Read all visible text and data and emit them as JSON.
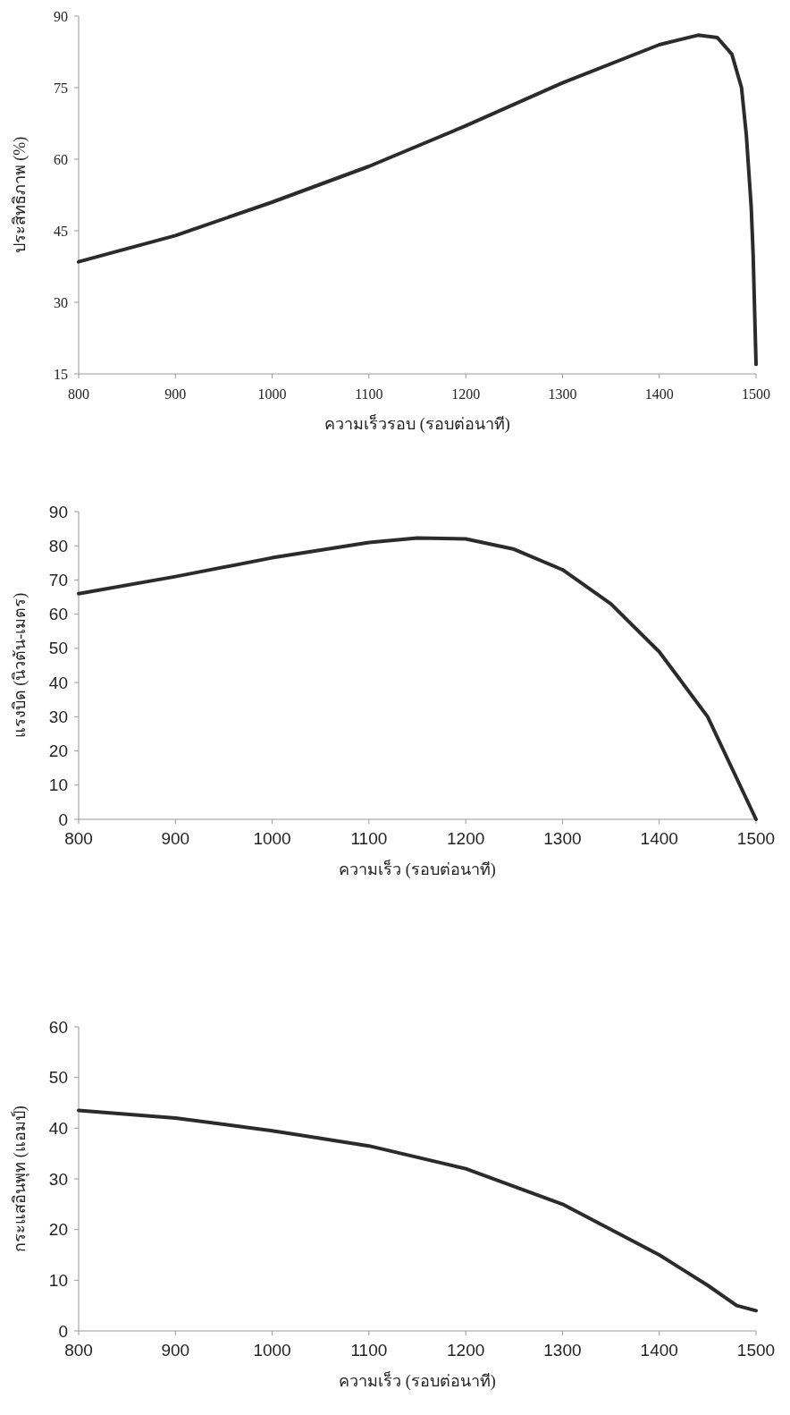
{
  "chart_data": [
    {
      "type": "line",
      "xlabel": "ความเร็วรอบ (รอบต่อนาที)",
      "ylabel": "ประสิทธิภาพ (%)",
      "xlim": [
        800,
        1500
      ],
      "ylim": [
        15,
        90
      ],
      "xticks": [
        800,
        900,
        1000,
        1100,
        1200,
        1300,
        1400,
        1500
      ],
      "yticks": [
        15,
        30,
        45,
        60,
        75,
        90
      ],
      "series": [
        {
          "color": "#2b2b2b",
          "x": [
            800,
            900,
            1000,
            1100,
            1200,
            1300,
            1400,
            1440,
            1460,
            1475,
            1485,
            1490,
            1495,
            1497,
            1500
          ],
          "values": [
            38.5,
            44,
            51,
            58.5,
            67,
            76,
            84,
            86,
            85.5,
            82,
            75,
            65,
            50,
            40,
            17
          ]
        }
      ]
    },
    {
      "type": "line",
      "xlabel": "ความเร็ว (รอบต่อนาที)",
      "ylabel": "แรงบิด (นิวตัน-เมตร)",
      "xlim": [
        800,
        1500
      ],
      "ylim": [
        0,
        90
      ],
      "xticks": [
        800,
        900,
        1000,
        1100,
        1200,
        1300,
        1400,
        1500
      ],
      "yticks": [
        0,
        10,
        20,
        30,
        40,
        50,
        60,
        70,
        80,
        90
      ],
      "series": [
        {
          "color": "#2b2b2b",
          "x": [
            800,
            900,
            1000,
            1100,
            1150,
            1200,
            1250,
            1300,
            1350,
            1400,
            1450,
            1500
          ],
          "values": [
            66,
            71,
            76.5,
            81,
            82.3,
            82,
            79,
            73,
            63,
            49,
            30,
            0
          ]
        }
      ]
    },
    {
      "type": "line",
      "xlabel": "ความเร็ว (รอบต่อนาที)",
      "ylabel": "กระแสอินพุท (แอมป์)",
      "xlim": [
        800,
        1500
      ],
      "ylim": [
        0,
        60
      ],
      "xticks": [
        800,
        900,
        1000,
        1100,
        1200,
        1300,
        1400,
        1500
      ],
      "yticks": [
        0,
        10,
        20,
        30,
        40,
        50,
        60
      ],
      "series": [
        {
          "color": "#2b2b2b",
          "x": [
            800,
            900,
            1000,
            1100,
            1200,
            1300,
            1400,
            1450,
            1480,
            1500
          ],
          "values": [
            43.5,
            42,
            39.5,
            36.5,
            32,
            25,
            15,
            9,
            5,
            4
          ]
        }
      ]
    }
  ]
}
